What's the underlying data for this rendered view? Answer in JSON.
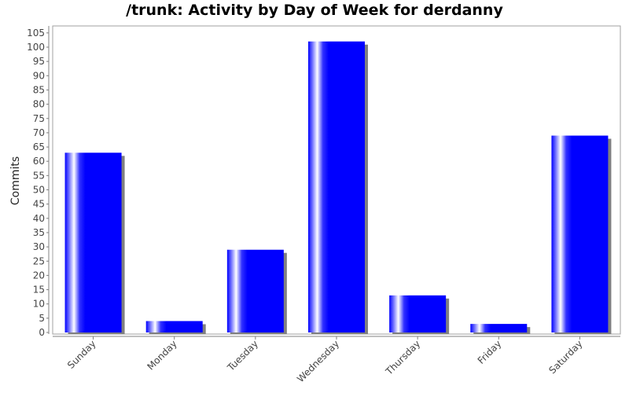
{
  "chart_data": {
    "type": "bar",
    "title": "/trunk: Activity by Day of Week for derdanny",
    "xlabel": "",
    "ylabel": "Commits",
    "categories": [
      "Sunday",
      "Monday",
      "Tuesday",
      "Wednesday",
      "Thursday",
      "Friday",
      "Saturday"
    ],
    "values": [
      63,
      4,
      29,
      102,
      13,
      3,
      69
    ],
    "ylim": [
      0,
      107
    ],
    "yticks": [
      0,
      5,
      10,
      15,
      20,
      25,
      30,
      35,
      40,
      45,
      50,
      55,
      60,
      65,
      70,
      75,
      80,
      85,
      90,
      95,
      100,
      105
    ],
    "grid": false,
    "legend": "none",
    "colors": {
      "bar": "#0000ff",
      "highlight": "#ffffff",
      "shadow": "#808080",
      "axis": "#808080"
    }
  }
}
